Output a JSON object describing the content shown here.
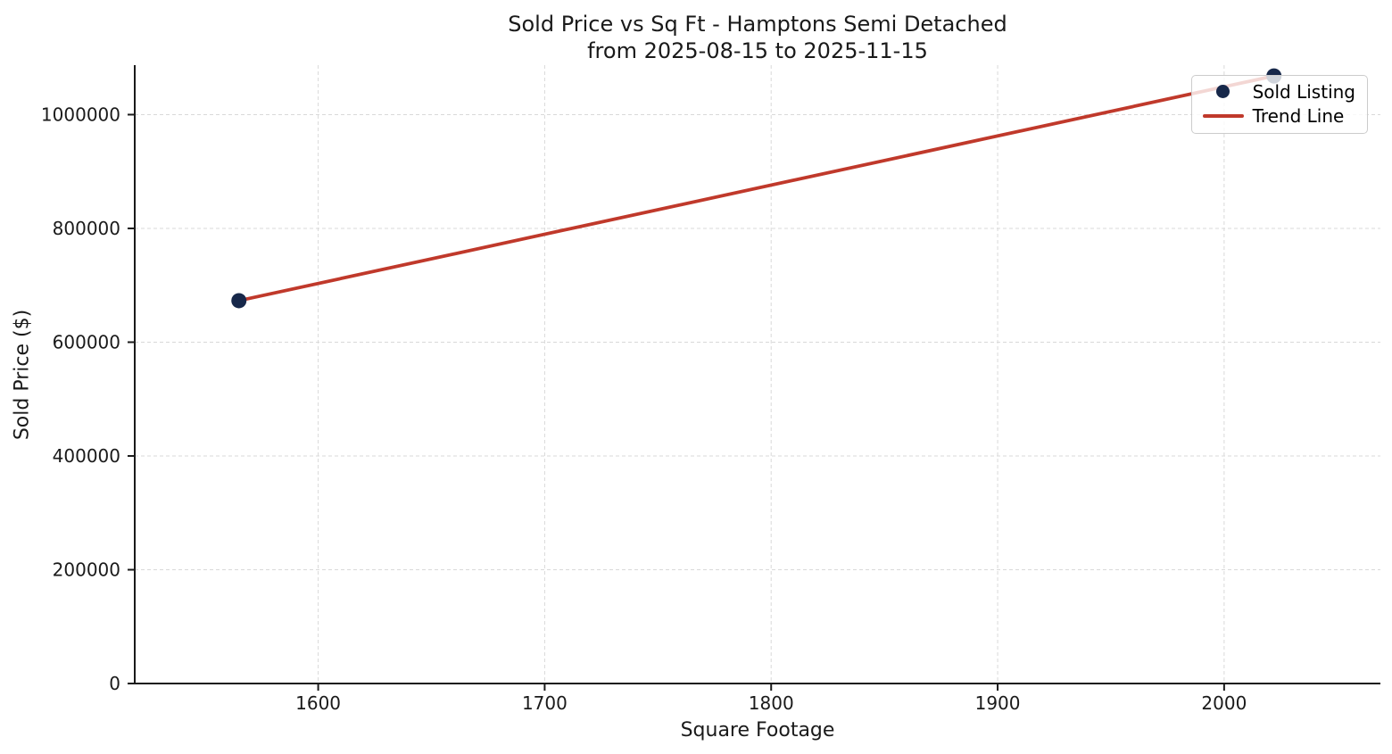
{
  "chart_data": {
    "type": "scatter",
    "title": "Sold Price vs Sq Ft - Hamptons Semi Detached",
    "subtitle": "from 2025-08-15 to 2025-11-15",
    "xlabel": "Square Footage",
    "ylabel": "Sold Price ($)",
    "xticks": [
      1600,
      1700,
      1800,
      1900,
      2000
    ],
    "yticks": [
      0,
      200000,
      400000,
      600000,
      800000,
      1000000
    ],
    "xlim": [
      1519,
      2069
    ],
    "ylim": [
      0,
      1087000
    ],
    "grid": true,
    "legend": {
      "position": "upper right"
    },
    "series": [
      {
        "name": "Sold Listing",
        "type": "scatter",
        "color": "#17284a",
        "points": [
          [
            1565,
            673000
          ],
          [
            2022,
            1068000
          ]
        ]
      },
      {
        "name": "Trend Line",
        "type": "line",
        "color": "#c0392b",
        "points": [
          [
            1565,
            673000
          ],
          [
            2022,
            1068000
          ]
        ]
      }
    ],
    "colors": {
      "grid": "#d9d9d9",
      "axis": "#1a1a1a",
      "text": "#1a1a1a"
    }
  }
}
